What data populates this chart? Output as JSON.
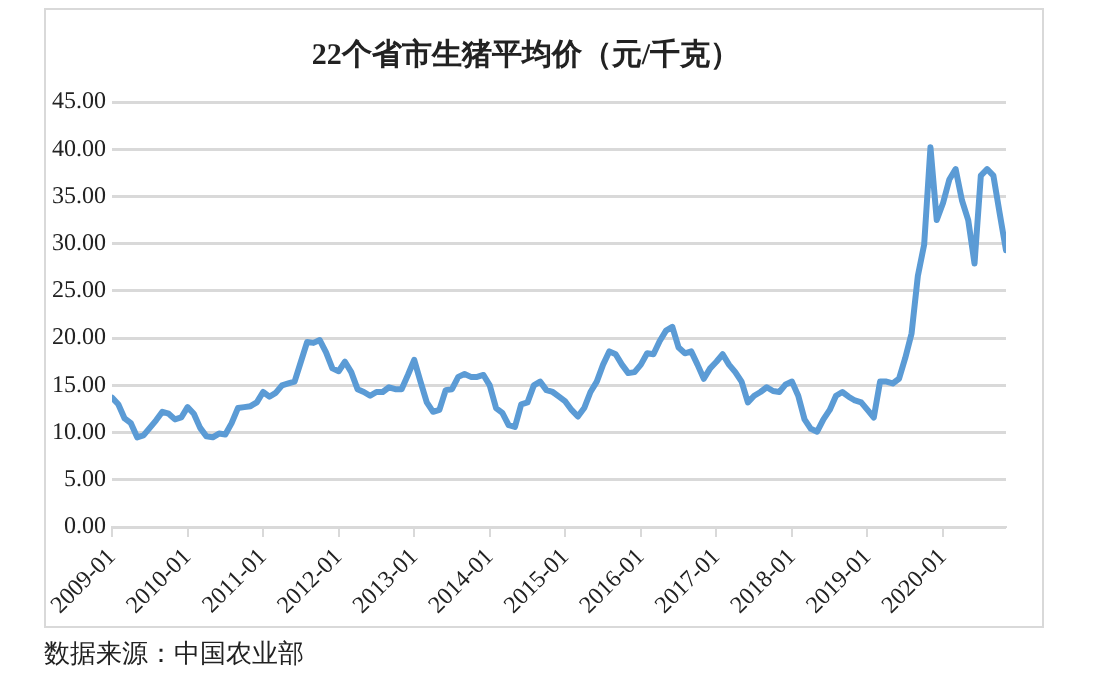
{
  "chart_data": {
    "type": "line",
    "title": "22个省市生猪平均价（元/千克）",
    "annotations": [
      "数据来源：中国农业部"
    ],
    "x": [
      "2009-01",
      "2009-02",
      "2009-03",
      "2009-04",
      "2009-05",
      "2009-06",
      "2009-07",
      "2009-08",
      "2009-09",
      "2009-10",
      "2009-11",
      "2009-12",
      "2010-01",
      "2010-02",
      "2010-03",
      "2010-04",
      "2010-05",
      "2010-06",
      "2010-07",
      "2010-08",
      "2010-09",
      "2010-10",
      "2010-11",
      "2010-12",
      "2011-01",
      "2011-02",
      "2011-03",
      "2011-04",
      "2011-05",
      "2011-06",
      "2011-07",
      "2011-08",
      "2011-09",
      "2011-10",
      "2011-11",
      "2011-12",
      "2012-01",
      "2012-02",
      "2012-03",
      "2012-04",
      "2012-05",
      "2012-06",
      "2012-07",
      "2012-08",
      "2012-09",
      "2012-10",
      "2012-11",
      "2012-12",
      "2013-01",
      "2013-02",
      "2013-03",
      "2013-04",
      "2013-05",
      "2013-06",
      "2013-07",
      "2013-08",
      "2013-09",
      "2013-10",
      "2013-11",
      "2013-12",
      "2014-01",
      "2014-02",
      "2014-03",
      "2014-04",
      "2014-05",
      "2014-06",
      "2014-07",
      "2014-08",
      "2014-09",
      "2014-10",
      "2014-11",
      "2014-12",
      "2015-01",
      "2015-02",
      "2015-03",
      "2015-04",
      "2015-05",
      "2015-06",
      "2015-07",
      "2015-08",
      "2015-09",
      "2015-10",
      "2015-11",
      "2015-12",
      "2016-01",
      "2016-02",
      "2016-03",
      "2016-04",
      "2016-05",
      "2016-06",
      "2016-07",
      "2016-08",
      "2016-09",
      "2016-10",
      "2016-11",
      "2016-12",
      "2017-01",
      "2017-02",
      "2017-03",
      "2017-04",
      "2017-05",
      "2017-06",
      "2017-07",
      "2017-08",
      "2017-09",
      "2017-10",
      "2017-11",
      "2017-12",
      "2018-01",
      "2018-02",
      "2018-03",
      "2018-04",
      "2018-05",
      "2018-06",
      "2018-07",
      "2018-08",
      "2018-09",
      "2018-10",
      "2018-11",
      "2018-12",
      "2019-01",
      "2019-02",
      "2019-03",
      "2019-04",
      "2019-05",
      "2019-06",
      "2019-07",
      "2019-08",
      "2019-09",
      "2019-10",
      "2019-11",
      "2019-12",
      "2020-01",
      "2020-02",
      "2020-03",
      "2020-04",
      "2020-05",
      "2020-06",
      "2020-07",
      "2020-08",
      "2020-09",
      "2020-10",
      "2020-11"
    ],
    "series": [
      {
        "color": "#5b9bd5",
        "values": [
          13.7,
          13.0,
          11.5,
          11.0,
          9.5,
          9.7,
          10.5,
          11.3,
          12.2,
          12.0,
          11.4,
          11.6,
          12.7,
          12.0,
          10.5,
          9.6,
          9.5,
          9.9,
          9.8,
          11.0,
          12.6,
          12.7,
          12.8,
          13.2,
          14.3,
          13.8,
          14.2,
          15.0,
          15.2,
          15.4,
          17.5,
          19.6,
          19.5,
          19.8,
          18.5,
          16.8,
          16.5,
          17.5,
          16.4,
          14.6,
          14.3,
          13.9,
          14.3,
          14.3,
          14.8,
          14.6,
          14.6,
          16.1,
          17.7,
          15.4,
          13.2,
          12.2,
          12.4,
          14.5,
          14.6,
          15.9,
          16.2,
          15.9,
          15.9,
          16.1,
          15.0,
          12.6,
          12.1,
          10.8,
          10.6,
          13.0,
          13.2,
          15.0,
          15.4,
          14.5,
          14.3,
          13.8,
          13.3,
          12.4,
          11.7,
          12.6,
          14.3,
          15.4,
          17.2,
          18.6,
          18.3,
          17.2,
          16.3,
          16.4,
          17.2,
          18.4,
          18.3,
          19.7,
          20.8,
          21.2,
          19.0,
          18.4,
          18.6,
          17.2,
          15.7,
          16.8,
          17.5,
          18.3,
          17.2,
          16.4,
          15.4,
          13.2,
          13.9,
          14.3,
          14.8,
          14.4,
          14.3,
          15.1,
          15.4,
          13.9,
          11.4,
          10.4,
          10.1,
          11.4,
          12.4,
          13.9,
          14.3,
          13.8,
          13.4,
          13.2,
          12.4,
          11.6,
          15.4,
          15.4,
          15.2,
          15.7,
          17.9,
          20.5,
          26.6,
          29.9,
          40.2,
          32.5,
          34.3,
          36.8,
          37.9,
          34.6,
          32.5,
          27.9,
          37.2,
          37.9,
          37.2,
          33.2,
          29.3
        ]
      }
    ],
    "xlim": [
      "2009-01",
      "2020-11"
    ],
    "xticks": [
      "2009-01",
      "2010-01",
      "2011-01",
      "2012-01",
      "2013-01",
      "2014-01",
      "2015-01",
      "2016-01",
      "2017-01",
      "2018-01",
      "2019-01",
      "2020-01"
    ],
    "ylim": [
      0,
      45
    ],
    "yticks": [
      {
        "value": 0,
        "label": "0.00"
      },
      {
        "value": 5,
        "label": "5.00"
      },
      {
        "value": 10,
        "label": "10.00"
      },
      {
        "value": 15,
        "label": "15.00"
      },
      {
        "value": 20,
        "label": "20.00"
      },
      {
        "value": 25,
        "label": "25.00"
      },
      {
        "value": 30,
        "label": "30.00"
      },
      {
        "value": 35,
        "label": "35.00"
      },
      {
        "value": 40,
        "label": "40.00"
      },
      {
        "value": 45,
        "label": "45.00"
      }
    ],
    "grid": "y",
    "legend": false,
    "marker": "none",
    "line_style": "solid"
  }
}
